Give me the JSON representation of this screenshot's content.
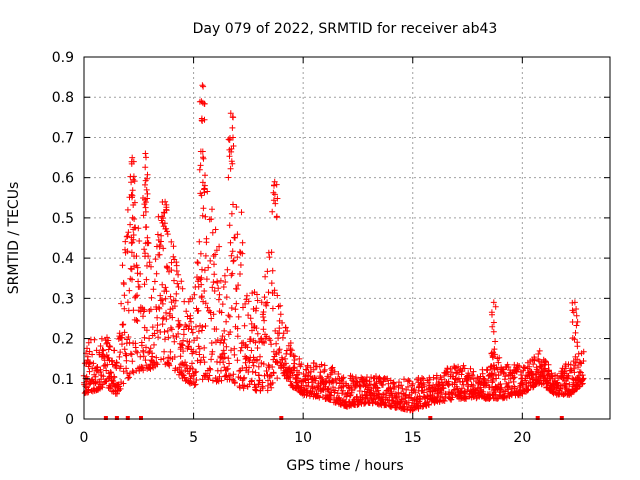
{
  "chart_data": {
    "type": "scatter",
    "title": "Day 079 of 2022, SRMTID for receiver ab43",
    "xlabel": "GPS time / hours",
    "ylabel": "SRMTID / TECUs",
    "xlim": [
      0,
      24
    ],
    "ylim": [
      0,
      0.9
    ],
    "xticks": [
      0,
      5,
      10,
      15,
      20
    ],
    "yticks": [
      0,
      0.1,
      0.2,
      0.3,
      0.4,
      0.5,
      0.6,
      0.7,
      0.8,
      0.9
    ],
    "xtick_labels": [
      "0",
      "5",
      "10",
      "15",
      "20"
    ],
    "ytick_labels": [
      "0",
      "0.1",
      "0.2",
      "0.3",
      "0.4",
      "0.5",
      "0.6",
      "0.7",
      "0.8",
      "0.9"
    ],
    "grid": true,
    "marker": "+",
    "color": "#ff0000",
    "envelope": [
      {
        "x": 0.0,
        "low": 0.06,
        "high": 0.17
      },
      {
        "x": 0.5,
        "low": 0.07,
        "high": 0.22
      },
      {
        "x": 1.0,
        "low": 0.08,
        "high": 0.22
      },
      {
        "x": 1.5,
        "low": 0.06,
        "high": 0.17
      },
      {
        "x": 2.0,
        "low": 0.1,
        "high": 0.6
      },
      {
        "x": 2.5,
        "low": 0.12,
        "high": 0.5
      },
      {
        "x": 3.0,
        "low": 0.12,
        "high": 0.45
      },
      {
        "x": 3.5,
        "low": 0.14,
        "high": 0.52
      },
      {
        "x": 4.0,
        "low": 0.13,
        "high": 0.45
      },
      {
        "x": 4.5,
        "low": 0.1,
        "high": 0.33
      },
      {
        "x": 5.0,
        "low": 0.08,
        "high": 0.3
      },
      {
        "x": 5.5,
        "low": 0.1,
        "high": 0.62
      },
      {
        "x": 6.0,
        "low": 0.09,
        "high": 0.48
      },
      {
        "x": 6.5,
        "low": 0.1,
        "high": 0.45
      },
      {
        "x": 7.0,
        "low": 0.08,
        "high": 0.62
      },
      {
        "x": 7.5,
        "low": 0.07,
        "high": 0.38
      },
      {
        "x": 8.0,
        "low": 0.07,
        "high": 0.3
      },
      {
        "x": 8.5,
        "low": 0.07,
        "high": 0.45
      },
      {
        "x": 9.0,
        "low": 0.12,
        "high": 0.27
      },
      {
        "x": 9.5,
        "low": 0.08,
        "high": 0.18
      },
      {
        "x": 10.0,
        "low": 0.06,
        "high": 0.14
      },
      {
        "x": 11.0,
        "low": 0.05,
        "high": 0.14
      },
      {
        "x": 12.0,
        "low": 0.03,
        "high": 0.11
      },
      {
        "x": 13.0,
        "low": 0.04,
        "high": 0.11
      },
      {
        "x": 14.0,
        "low": 0.03,
        "high": 0.1
      },
      {
        "x": 15.0,
        "low": 0.02,
        "high": 0.1
      },
      {
        "x": 16.0,
        "low": 0.04,
        "high": 0.11
      },
      {
        "x": 17.0,
        "low": 0.05,
        "high": 0.14
      },
      {
        "x": 18.0,
        "low": 0.05,
        "high": 0.12
      },
      {
        "x": 19.0,
        "low": 0.05,
        "high": 0.16
      },
      {
        "x": 20.0,
        "low": 0.06,
        "high": 0.13
      },
      {
        "x": 20.8,
        "low": 0.09,
        "high": 0.17
      },
      {
        "x": 21.5,
        "low": 0.06,
        "high": 0.11
      },
      {
        "x": 22.2,
        "low": 0.06,
        "high": 0.15
      },
      {
        "x": 22.8,
        "low": 0.09,
        "high": 0.17
      }
    ],
    "spikes": [
      {
        "x": 2.2,
        "low": 0.4,
        "high": 0.65
      },
      {
        "x": 2.8,
        "low": 0.45,
        "high": 0.66
      },
      {
        "x": 3.7,
        "low": 0.45,
        "high": 0.54
      },
      {
        "x": 5.4,
        "low": 0.55,
        "high": 0.83
      },
      {
        "x": 6.7,
        "low": 0.6,
        "high": 0.76
      },
      {
        "x": 8.7,
        "low": 0.5,
        "high": 0.59
      },
      {
        "x": 18.7,
        "low": 0.12,
        "high": 0.29
      },
      {
        "x": 22.4,
        "low": 0.18,
        "high": 0.29
      }
    ],
    "near_zero_x": [
      1.0,
      1.5,
      2.0,
      2.6,
      9.0,
      15.8,
      20.7,
      21.8
    ]
  }
}
